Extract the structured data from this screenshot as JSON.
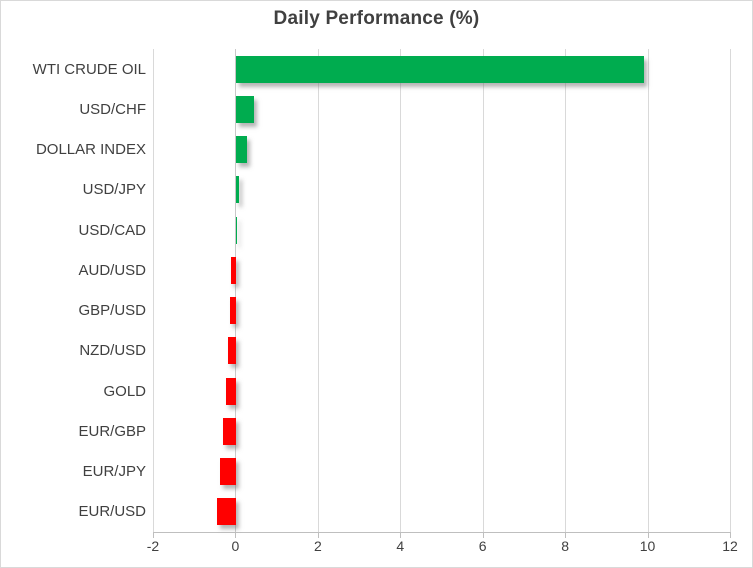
{
  "chart_data": {
    "type": "bar",
    "orientation": "horizontal",
    "title": "Daily Performance (%)",
    "categories": [
      "WTI CRUDE OIL",
      "USD/CHF",
      "DOLLAR INDEX",
      "USD/JPY",
      "USD/CAD",
      "AUD/USD",
      "GBP/USD",
      "NZD/USD",
      "GOLD",
      "EUR/GBP",
      "EUR/JPY",
      "EUR/USD"
    ],
    "values": [
      9.9,
      0.43,
      0.27,
      0.07,
      0.01,
      -0.12,
      -0.14,
      -0.19,
      -0.24,
      -0.31,
      -0.38,
      -0.46
    ],
    "xlabel": "",
    "ylabel": "",
    "xlim": [
      -2,
      12
    ],
    "xticks": [
      -2,
      0,
      2,
      4,
      6,
      8,
      10,
      12
    ],
    "xtick_labels": [
      "-2",
      "0",
      "2",
      "4",
      "6",
      "8",
      "10",
      "12"
    ],
    "grid": true,
    "legend": false,
    "colors": {
      "positive": "#00AC4F",
      "negative": "#FF0000",
      "gridline": "#D9D9D9",
      "axis_line": "#BFBFBF",
      "text": "#404040",
      "border": "#D9D9D9",
      "background": "#FFFFFF"
    }
  }
}
